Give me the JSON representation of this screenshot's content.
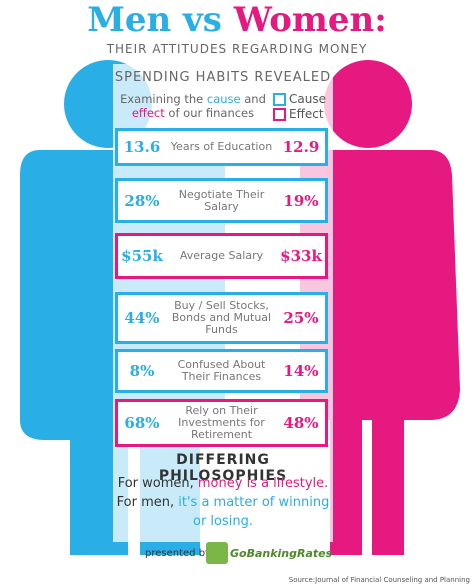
{
  "header": {
    "title_men": "Men vs",
    "title_women": "Women:",
    "subtitle": "THEIR ATTITUDES REGARDING MONEY"
  },
  "section_title": "SPENDING HABITS REVEALED",
  "intro": {
    "part1": "Examining the ",
    "cause": "cause",
    "part2": " and",
    "effect": "effect",
    "part3": " of our finances"
  },
  "legend": [
    {
      "label": "Cause",
      "color": "#29aee6"
    },
    {
      "label": "Effect",
      "color": "#e5197f"
    }
  ],
  "rows": [
    {
      "men": "13.6",
      "label": "Years of Education",
      "women": "12.9",
      "color": "#29aee6"
    },
    {
      "men": "28%",
      "label": "Negotiate Their Salary",
      "women": "19%",
      "color": "#29aee6"
    },
    {
      "men": "$55k",
      "label": "Average Salary",
      "women": "$33k",
      "color": "#e5197f"
    },
    {
      "men": "44%",
      "label": "Buy / Sell Stocks, Bonds and Mutual Funds",
      "women": "25%",
      "color": "#29aee6"
    },
    {
      "men": "8%",
      "label": "Confused About Their Finances",
      "women": "14%",
      "color": "#29aee6"
    },
    {
      "men": "68%",
      "label": "Rely on Their Investments for Retirement",
      "women": "48%",
      "color": "#e5197f"
    }
  ],
  "philosophies": {
    "title": "DIFFERING PHILOSOPHIES",
    "women_lead": "For women, ",
    "women_text": "money is a lifestyle.",
    "men_lead": "For men, ",
    "men_text": "it's a matter of winning or losing."
  },
  "footer": {
    "presented_by": "presented by",
    "brand": "GoBankingRates",
    "source": "Source:Journal of Financial Counseling and Planning"
  }
}
